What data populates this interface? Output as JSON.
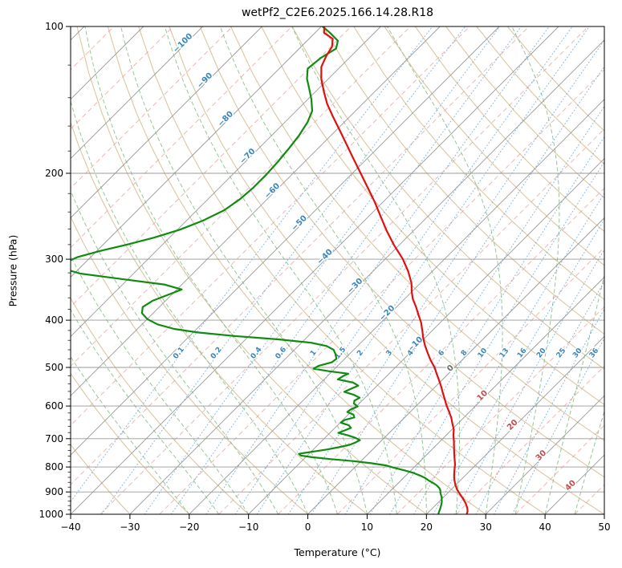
{
  "chart_data": {
    "type": "line",
    "subtype": "skewT-logP-sounding",
    "title": "wetPf2_C2E6.2025.166.14.28.R18",
    "xlabel": "Temperature (°C)",
    "ylabel": "Pressure (hPa)",
    "x_range_c": [
      -40,
      50
    ],
    "p_range_hpa": [
      100,
      1000
    ],
    "x_ticks": [
      -40,
      -30,
      -20,
      -10,
      0,
      10,
      20,
      30,
      40,
      50
    ],
    "p_ticks": [
      100,
      200,
      300,
      400,
      500,
      600,
      700,
      800,
      900,
      1000
    ],
    "skew": "45deg isotherms, log pressure axis",
    "grid": true,
    "isotherms_c": [
      -120,
      -110,
      -100,
      -90,
      -80,
      -70,
      -60,
      -50,
      -40,
      -30,
      -20,
      -10,
      0,
      10,
      20,
      30,
      40,
      50
    ],
    "minor_isotherms_c": [
      -125,
      -115,
      -105,
      -95,
      -85,
      -75,
      -65,
      -55,
      -45,
      -35,
      -25,
      -15,
      -5,
      5,
      15,
      25,
      35,
      45
    ],
    "dry_adiabats_theta_c": [
      -30,
      -20,
      -10,
      0,
      10,
      20,
      30,
      40,
      50,
      60,
      70,
      80,
      90,
      100,
      110,
      120,
      130,
      140,
      150,
      160
    ],
    "moist_adiabats_t0_c": [
      -20,
      -15,
      -10,
      -5,
      0,
      5,
      10,
      15,
      20,
      25,
      30,
      35,
      40,
      45
    ],
    "mixing_ratios_gkg": [
      0.1,
      0.2,
      0.4,
      0.6,
      1,
      1.5,
      2,
      3,
      4,
      6,
      8,
      10,
      13,
      16,
      20,
      25,
      30,
      36
    ],
    "mixing_label_pressure_hpa": 470,
    "isotherm_label_anchors_t_p": [
      [
        -100,
        109
      ],
      [
        -90,
        130
      ],
      [
        -80,
        156
      ],
      [
        -70,
        186
      ],
      [
        -60,
        219
      ],
      [
        -50,
        255
      ],
      [
        -40,
        299
      ],
      [
        -30,
        343
      ],
      [
        -20,
        390
      ],
      [
        -10,
        452
      ],
      [
        0,
        506
      ],
      [
        10,
        576
      ],
      [
        20,
        661
      ],
      [
        30,
        764
      ],
      [
        40,
        880
      ]
    ],
    "colors": {
      "temperature": "#e01010",
      "dewpoint": "#0f8c0f",
      "isotherm": "#999999",
      "isobar": "#999999",
      "minor_isotherm": "#f0aaa6",
      "dry_adiabat": "#c8a96e",
      "moist_adiabat": "#8cc08c",
      "mixing_line": "#5f9fd4",
      "label_negative": "#3a87bd",
      "label_zero": "#6e6e6e",
      "label_positive": "#c24f4f",
      "frame": "#000000"
    },
    "series": [
      {
        "name": "temperature",
        "units": [
          "hPa",
          "degC"
        ],
        "points": [
          [
            100,
            -79.5
          ],
          [
            103,
            -78.5
          ],
          [
            106,
            -76
          ],
          [
            110,
            -74.8
          ],
          [
            115,
            -74.2
          ],
          [
            121,
            -73.2
          ],
          [
            128,
            -71.2
          ],
          [
            136,
            -68.6
          ],
          [
            144,
            -66
          ],
          [
            152,
            -63.2
          ],
          [
            162,
            -59.8
          ],
          [
            174,
            -56
          ],
          [
            187,
            -52.2
          ],
          [
            200,
            -48.6
          ],
          [
            214,
            -45
          ],
          [
            229,
            -41.4
          ],
          [
            245,
            -38
          ],
          [
            262,
            -34.6
          ],
          [
            280,
            -31
          ],
          [
            300,
            -27
          ],
          [
            318,
            -24
          ],
          [
            336,
            -21.5
          ],
          [
            350,
            -20
          ],
          [
            362,
            -18.6
          ],
          [
            376,
            -16.7
          ],
          [
            390,
            -15
          ],
          [
            404,
            -13.3
          ],
          [
            420,
            -11.7
          ],
          [
            436,
            -10.2
          ],
          [
            452,
            -8.6
          ],
          [
            468,
            -6.9
          ],
          [
            484,
            -5.2
          ],
          [
            500,
            -3.4
          ],
          [
            516,
            -1.9
          ],
          [
            532,
            -0.4
          ],
          [
            548,
            1
          ],
          [
            564,
            2.3
          ],
          [
            580,
            3.6
          ],
          [
            598,
            5
          ],
          [
            616,
            6.5
          ],
          [
            634,
            7.9
          ],
          [
            652,
            9.1
          ],
          [
            670,
            10.3
          ],
          [
            690,
            11.3
          ],
          [
            710,
            12.4
          ],
          [
            730,
            13.4
          ],
          [
            750,
            14.4
          ],
          [
            770,
            15.4
          ],
          [
            790,
            16.4
          ],
          [
            810,
            17.2
          ],
          [
            830,
            18
          ],
          [
            850,
            18.9
          ],
          [
            870,
            19.9
          ],
          [
            890,
            21
          ],
          [
            910,
            22.3
          ],
          [
            930,
            23.6
          ],
          [
            950,
            24.8
          ],
          [
            970,
            25.8
          ],
          [
            985,
            26.4
          ],
          [
            1000,
            26.8
          ]
        ]
      },
      {
        "name": "dewpoint",
        "units": [
          "hPa",
          "degC"
        ],
        "points": [
          [
            100,
            -79.8
          ],
          [
            103,
            -77.5
          ],
          [
            107,
            -74.8
          ],
          [
            111,
            -73.8
          ],
          [
            116,
            -74.8
          ],
          [
            122,
            -75.2
          ],
          [
            128,
            -73.6
          ],
          [
            134,
            -71.6
          ],
          [
            141,
            -69.4
          ],
          [
            149,
            -67.3
          ],
          [
            157,
            -66.2
          ],
          [
            167,
            -65.4
          ],
          [
            178,
            -64.9
          ],
          [
            190,
            -64.5
          ],
          [
            202,
            -64.3
          ],
          [
            214,
            -64.3
          ],
          [
            226,
            -64.6
          ],
          [
            238,
            -65.4
          ],
          [
            250,
            -67.2
          ],
          [
            261,
            -69.6
          ],
          [
            271,
            -72.6
          ],
          [
            280,
            -76
          ],
          [
            289,
            -79.6
          ],
          [
            297,
            -82.2
          ],
          [
            305,
            -83.4
          ],
          [
            313,
            -83
          ],
          [
            321,
            -79
          ],
          [
            330,
            -70.5
          ],
          [
            338,
            -63
          ],
          [
            346,
            -59.2
          ],
          [
            355,
            -60.6
          ],
          [
            365,
            -62.2
          ],
          [
            376,
            -62.8
          ],
          [
            387,
            -61.9
          ],
          [
            398,
            -60
          ],
          [
            408,
            -57.4
          ],
          [
            417,
            -53.8
          ],
          [
            424,
            -49.2
          ],
          [
            431,
            -42.5
          ],
          [
            438,
            -34.5
          ],
          [
            445,
            -28.4
          ],
          [
            452,
            -25.2
          ],
          [
            460,
            -23.4
          ],
          [
            470,
            -22.3
          ],
          [
            480,
            -21.4
          ],
          [
            488,
            -21.6
          ],
          [
            496,
            -23.2
          ],
          [
            503,
            -23.6
          ],
          [
            509,
            -20.6
          ],
          [
            515,
            -16.9
          ],
          [
            522,
            -17.4
          ],
          [
            529,
            -17.7
          ],
          [
            537,
            -14.6
          ],
          [
            545,
            -13.2
          ],
          [
            553,
            -13.9
          ],
          [
            561,
            -14.5
          ],
          [
            569,
            -12.4
          ],
          [
            577,
            -10.9
          ],
          [
            585,
            -11.3
          ],
          [
            593,
            -10.9
          ],
          [
            601,
            -9.8
          ],
          [
            609,
            -10.4
          ],
          [
            617,
            -10.6
          ],
          [
            625,
            -9.1
          ],
          [
            633,
            -8.5
          ],
          [
            641,
            -9.7
          ],
          [
            649,
            -9.9
          ],
          [
            657,
            -8.1
          ],
          [
            665,
            -7.3
          ],
          [
            673,
            -7.9
          ],
          [
            681,
            -8.6
          ],
          [
            689,
            -6.6
          ],
          [
            697,
            -4.9
          ],
          [
            705,
            -3.7
          ],
          [
            713,
            -4.1
          ],
          [
            721,
            -4.7
          ],
          [
            729,
            -6.1
          ],
          [
            737,
            -7.8
          ],
          [
            745,
            -10
          ],
          [
            752,
            -11.7
          ],
          [
            758,
            -11.1
          ],
          [
            764,
            -8.9
          ],
          [
            771,
            -5.4
          ],
          [
            778,
            -1.4
          ],
          [
            786,
            2.1
          ],
          [
            794,
            4.9
          ],
          [
            803,
            6.7
          ],
          [
            813,
            8.9
          ],
          [
            823,
            10.9
          ],
          [
            833,
            12.4
          ],
          [
            843,
            13.7
          ],
          [
            853,
            14.7
          ],
          [
            863,
            15.9
          ],
          [
            873,
            16.9
          ],
          [
            883,
            17.7
          ],
          [
            893,
            18.3
          ],
          [
            903,
            18.7
          ],
          [
            913,
            19.2
          ],
          [
            923,
            19.7
          ],
          [
            933,
            20.1
          ],
          [
            943,
            20.5
          ],
          [
            953,
            20.8
          ],
          [
            963,
            21.1
          ],
          [
            975,
            21.4
          ],
          [
            988,
            21.7
          ],
          [
            1000,
            22
          ]
        ]
      }
    ]
  }
}
